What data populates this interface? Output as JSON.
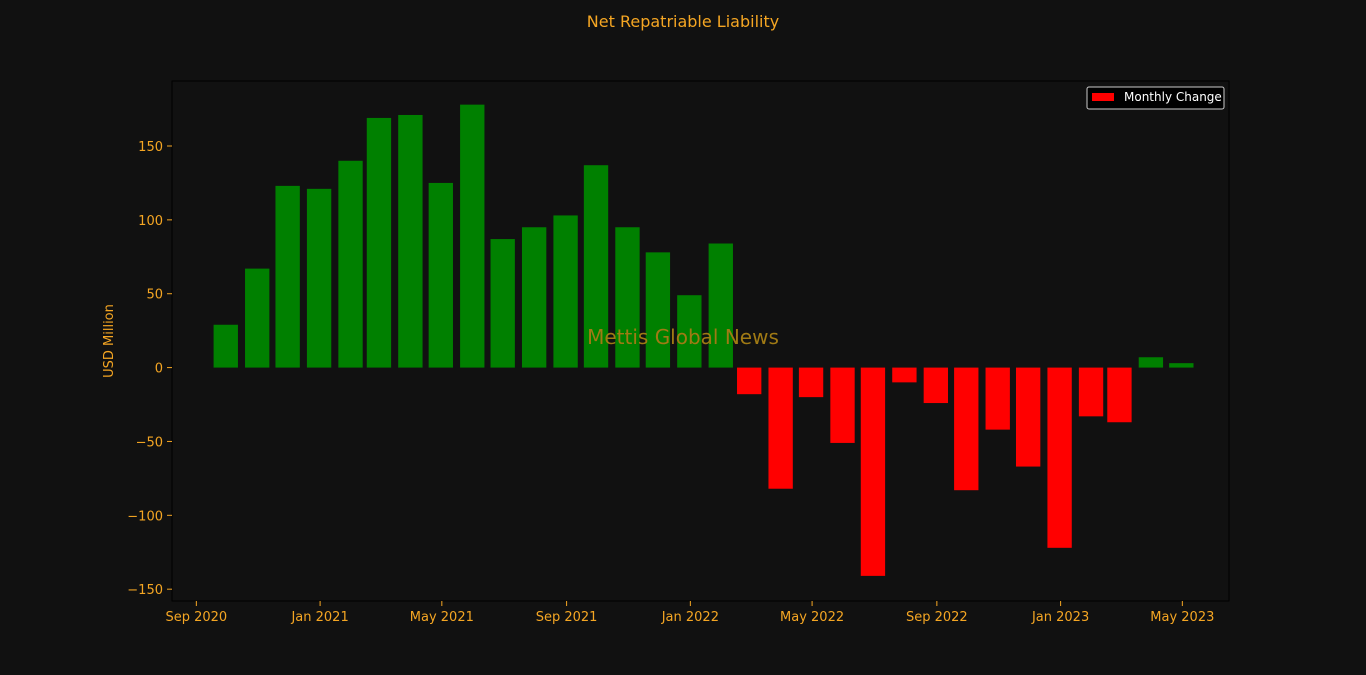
{
  "colors": {
    "background": "#111111",
    "text": "#f5a623",
    "positive": "#008000",
    "negative": "#ff0000",
    "legend_border": "#cccccc",
    "legend_text": "#ffffff",
    "watermark": "#a07a14"
  },
  "watermark": "Mettis Global News",
  "chart_data": {
    "type": "bar",
    "title": "Net Repatriable Liability",
    "xlabel": "",
    "ylabel": "USD Million",
    "ylim": [
      -158,
      194
    ],
    "xlim": [
      "2020-08-08",
      "2023-06-16"
    ],
    "yticks": [
      -150,
      -100,
      -50,
      0,
      50,
      100,
      150
    ],
    "xticks": [
      {
        "date": "2020-09-01",
        "label": "Sep 2020"
      },
      {
        "date": "2021-01-01",
        "label": "Jan 2021"
      },
      {
        "date": "2021-05-01",
        "label": "May 2021"
      },
      {
        "date": "2021-09-01",
        "label": "Sep 2021"
      },
      {
        "date": "2022-01-01",
        "label": "Jan 2022"
      },
      {
        "date": "2022-05-01",
        "label": "May 2022"
      },
      {
        "date": "2022-09-01",
        "label": "Sep 2022"
      },
      {
        "date": "2023-01-01",
        "label": "Jan 2023"
      },
      {
        "date": "2023-05-01",
        "label": "May 2023"
      }
    ],
    "legend": {
      "placement": "top-right",
      "entries": [
        {
          "label": "Monthly Change",
          "color": "#ff0000"
        }
      ]
    },
    "grid": false,
    "x": [
      "2020-09-30",
      "2020-10-31",
      "2020-11-30",
      "2020-12-31",
      "2021-01-31",
      "2021-02-28",
      "2021-03-31",
      "2021-04-30",
      "2021-05-31",
      "2021-06-30",
      "2021-07-31",
      "2021-08-31",
      "2021-09-30",
      "2021-10-31",
      "2021-11-30",
      "2021-12-31",
      "2022-01-31",
      "2022-02-28",
      "2022-03-31",
      "2022-04-30",
      "2022-05-31",
      "2022-06-30",
      "2022-07-31",
      "2022-08-31",
      "2022-09-30",
      "2022-10-31",
      "2022-11-30",
      "2022-12-31",
      "2023-01-31",
      "2023-02-28",
      "2023-03-31",
      "2023-04-30",
      "2023-05-31"
    ],
    "values": [
      29,
      67,
      123,
      121,
      140,
      169,
      171,
      125,
      178,
      87,
      95,
      103,
      137,
      95,
      78,
      49,
      84,
      -18,
      -82,
      -20,
      -51,
      -141,
      -10,
      -24,
      -83,
      -42,
      -67,
      -122,
      -33,
      -37,
      7,
      3,
      0
    ]
  }
}
